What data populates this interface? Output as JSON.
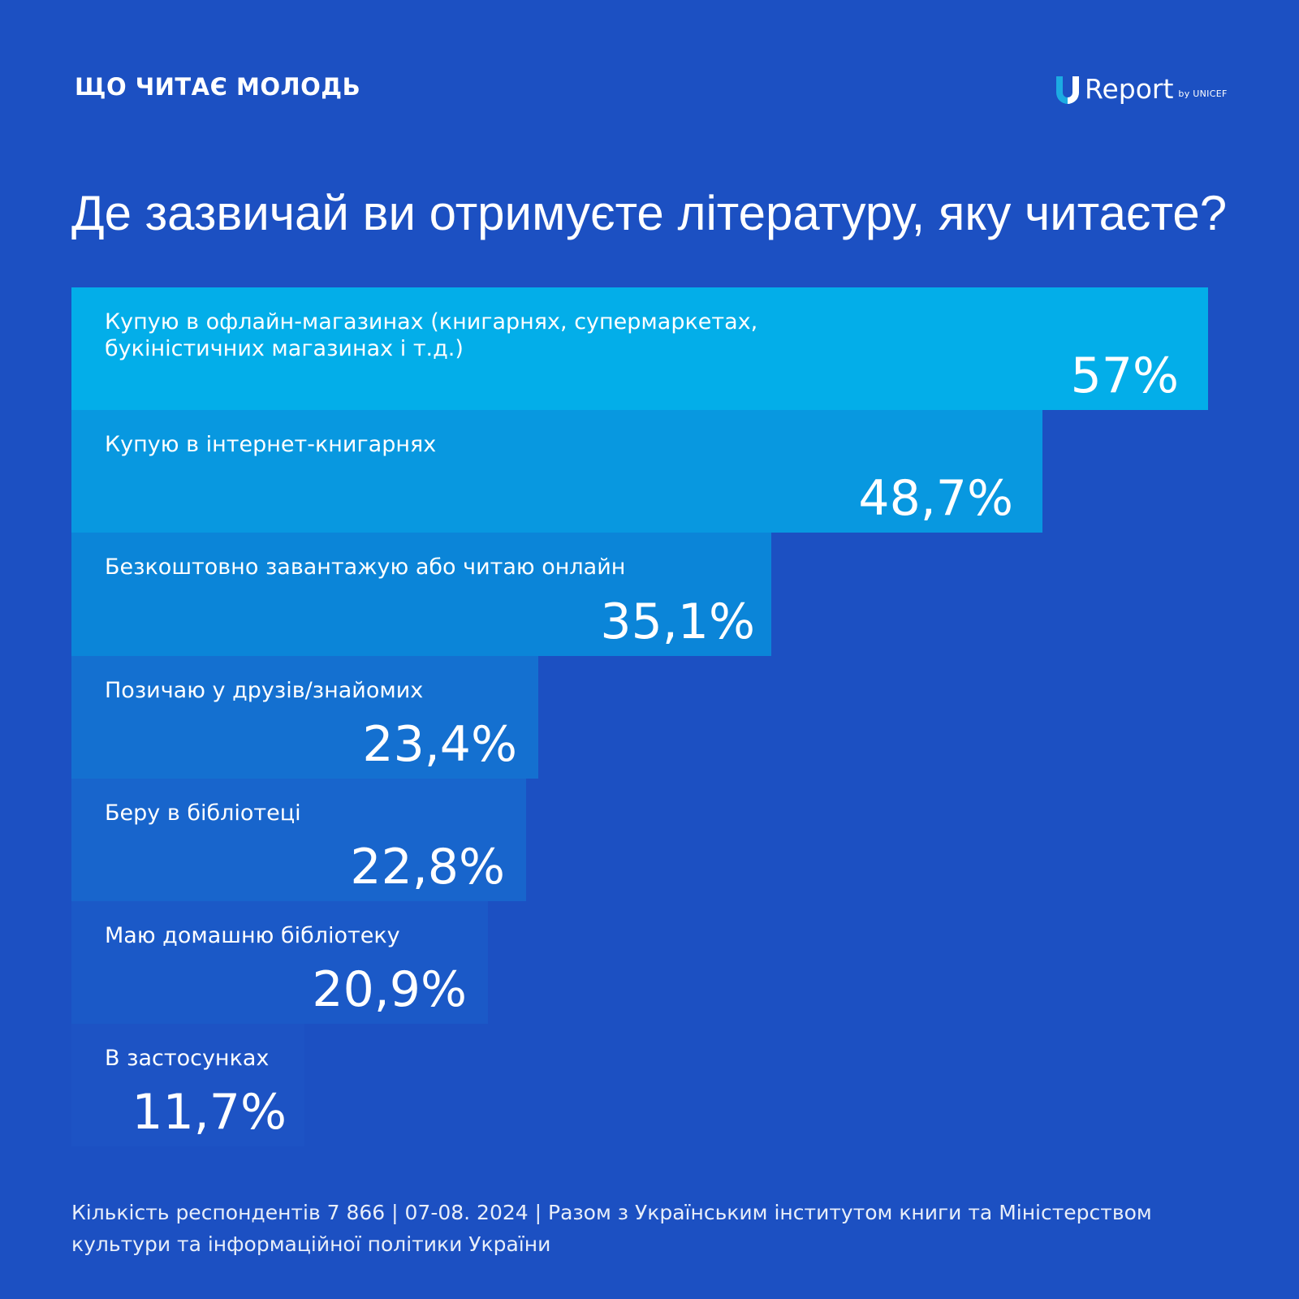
{
  "header": {
    "label": "ЩО ЧИТАЄ МОЛОДЬ",
    "logo_icon": "u-report-logo-icon",
    "logo_text": "Report",
    "logo_suffix": "by UNICEF"
  },
  "question": "Де зазвичай ви отримуєте літературу, яку читаєте?",
  "colors": {
    "background": "#1c50c2",
    "text": "#ffffff",
    "logo_accent": "#1cabe2",
    "bars": [
      "#03aee9",
      "#0898e0",
      "#0b85d8",
      "#1470d0",
      "#1865cc",
      "#1b59c7",
      "#1d53c4"
    ]
  },
  "chart_data": {
    "type": "bar",
    "orientation": "horizontal",
    "categories": [
      "Купую в офлайн-магазинах (книгарнях, супермаркетах,\nбукіністичних магазинах і т.д.)",
      "Купую в інтернет-книгарнях",
      "Безкоштовно завантажую або читаю онлайн",
      "Позичаю у друзів/знайомих",
      "Беру в бібліотеці",
      "Маю домашню бібліотеку",
      "В застосунках"
    ],
    "values": [
      57,
      48.7,
      35.1,
      23.4,
      22.8,
      20.9,
      11.7
    ],
    "value_labels": [
      "57%",
      "48,7%",
      "35,1%",
      "23,4%",
      "22,8%",
      "20,9%",
      "11,7%"
    ],
    "unit": "%",
    "xlim": [
      0,
      57
    ]
  },
  "footer": {
    "text": "Кількість респондентів 7 866 | 07-08. 2024 | Разом з Українським інститутом книги та Міністерством культури та інформаційної політики України"
  }
}
